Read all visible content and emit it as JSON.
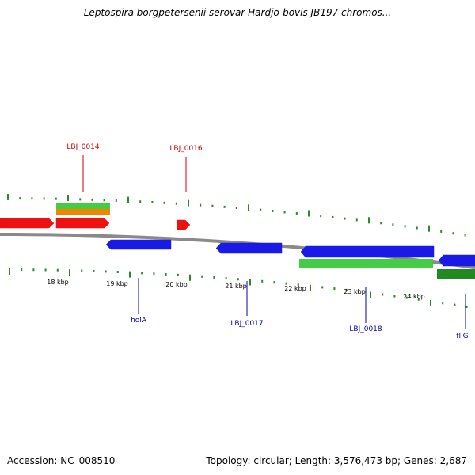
{
  "title": "Leptospira borgpetersenii serovar Hardjo-bovis JB197 chromos...",
  "footer": {
    "accession": "Accession: NC_008510",
    "summary": "Topology: circular; Length: 3,576,473 bp; Genes: 2,687"
  },
  "colors": {
    "backbone": "#8a8a8a",
    "forward_cds": "#ee1111",
    "reverse_cds": "#1a1ae6",
    "light_green": "#44cc44",
    "dark_green": "#228822",
    "orange": "#ee8800",
    "tick_green": "#2a8a2a",
    "label_red": "#cc0000",
    "label_blue": "#0000aa"
  },
  "scale_labels": [
    "18 kbp",
    "19 kbp",
    "20 kbp",
    "21 kbp",
    "22 kbp",
    "23 kbp",
    "24 kbp"
  ],
  "forward_genes": [
    {
      "id": "fwd-1",
      "label": "",
      "color": "forward_cds"
    },
    {
      "id": "fwd-2",
      "label": "",
      "color": "forward_cds"
    },
    {
      "id": "fwd-3",
      "label": "",
      "color": "forward_cds"
    }
  ],
  "reverse_genes": [
    {
      "id": "rev-1",
      "label": "",
      "color": "reverse_cds"
    },
    {
      "id": "rev-2",
      "label": "",
      "color": "reverse_cds"
    },
    {
      "id": "rev-3",
      "label": "",
      "color": "reverse_cds"
    },
    {
      "id": "rev-4",
      "label": "",
      "color": "reverse_cds"
    }
  ],
  "gene_labels": {
    "top": [
      "LBJ_0014",
      "LBJ_0016"
    ],
    "bottom": [
      "holA",
      "LBJ_0017",
      "LBJ_0018",
      "fliG"
    ]
  }
}
